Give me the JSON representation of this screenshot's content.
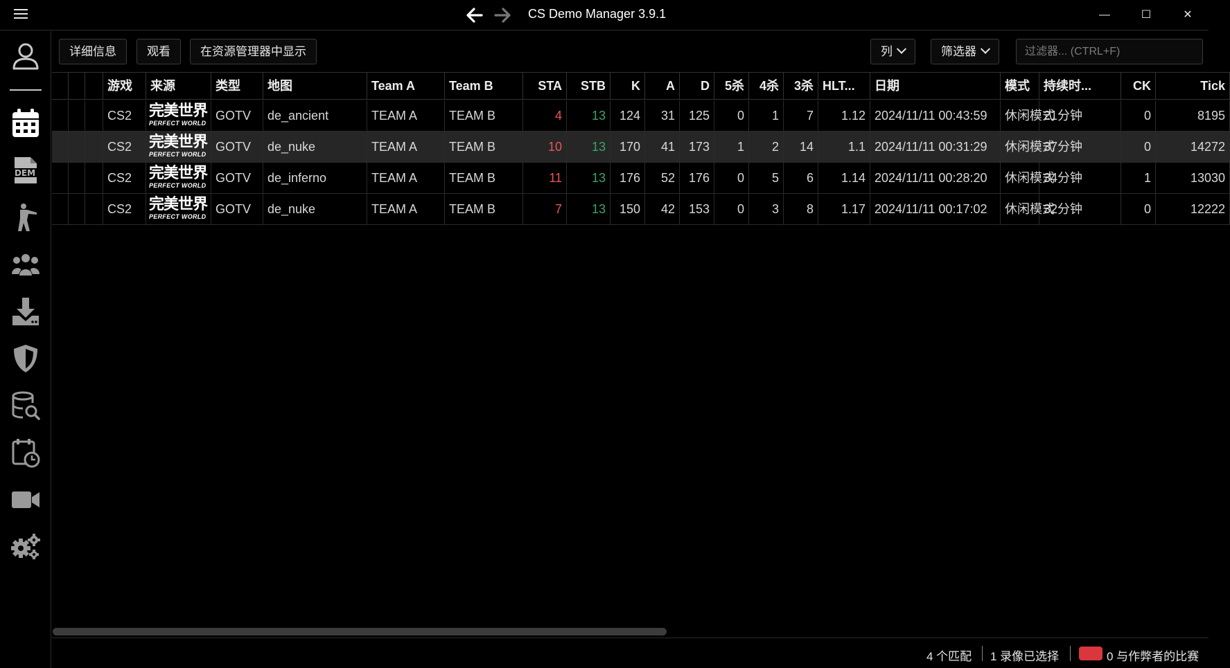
{
  "titlebar": {
    "title": "CS Demo Manager 3.9.1",
    "menu_icon": "hamburger-icon",
    "back_icon": "arrow-left-icon",
    "forward_icon": "arrow-right-icon",
    "minimize": "—",
    "maximize": "☐",
    "close": "✕"
  },
  "sidebar": {
    "items": [
      {
        "name": "profile",
        "icon": "user-icon"
      },
      {
        "name": "matches",
        "icon": "calendar-icon",
        "active": true
      },
      {
        "name": "demos",
        "icon": "dem-file-icon"
      },
      {
        "name": "players",
        "icon": "soldier-icon"
      },
      {
        "name": "teams",
        "icon": "team-icon"
      },
      {
        "name": "downloads",
        "icon": "download-icon"
      },
      {
        "name": "ban",
        "icon": "shield-icon"
      },
      {
        "name": "search",
        "icon": "database-search-icon"
      },
      {
        "name": "timeline",
        "icon": "calendar-clock-icon"
      },
      {
        "name": "videos",
        "icon": "video-camera-icon"
      },
      {
        "name": "settings",
        "icon": "gears-icon"
      }
    ]
  },
  "toolbar": {
    "details_label": "详细信息",
    "watch_label": "观看",
    "reveal_label": "在资源管理器中显示",
    "columns_label": "列",
    "filters_label": "筛选器",
    "filter_placeholder": "过滤器... (CTRL+F)"
  },
  "table": {
    "headers": {
      "game": "游戏",
      "source": "来源",
      "type": "类型",
      "map": "地图",
      "team_a": "Team A",
      "team_b": "Team B",
      "sta": "STA",
      "stb": "STB",
      "k": "K",
      "a": "A",
      "d": "D",
      "k5": "5杀",
      "k4": "4杀",
      "k3": "3杀",
      "hlt": "HLT...",
      "date": "日期",
      "mode": "模式",
      "duration": "持续时...",
      "ck": "CK",
      "tick": "Tick"
    },
    "source_logo": {
      "cn": "完美世界",
      "en": "PERFECT WORLD"
    },
    "rows": [
      {
        "game": "CS2",
        "type": "GOTV",
        "map": "de_ancient",
        "team_a": "TEAM A",
        "team_b": "TEAM B",
        "sta": "4",
        "stb": "13",
        "k": "124",
        "a": "31",
        "d": "125",
        "k5": "0",
        "k4": "1",
        "k3": "7",
        "hlt": "1.12",
        "date": "2024/11/11 00:43:59",
        "mode": "休闲模式",
        "duration": "21分钟",
        "ck": "0",
        "tick": "8195"
      },
      {
        "game": "CS2",
        "type": "GOTV",
        "map": "de_nuke",
        "team_a": "TEAM A",
        "team_b": "TEAM B",
        "sta": "10",
        "stb": "13",
        "k": "170",
        "a": "41",
        "d": "173",
        "k5": "1",
        "k4": "2",
        "k3": "14",
        "hlt": "1.1",
        "date": "2024/11/11 00:31:29",
        "mode": "休闲模式",
        "duration": "37分钟",
        "ck": "0",
        "tick": "14272"
      },
      {
        "game": "CS2",
        "type": "GOTV",
        "map": "de_inferno",
        "team_a": "TEAM A",
        "team_b": "TEAM B",
        "sta": "11",
        "stb": "13",
        "k": "176",
        "a": "52",
        "d": "176",
        "k5": "0",
        "k4": "5",
        "k3": "6",
        "hlt": "1.14",
        "date": "2024/11/11 00:28:20",
        "mode": "休闲模式",
        "duration": "34分钟",
        "ck": "1",
        "tick": "13030"
      },
      {
        "game": "CS2",
        "type": "GOTV",
        "map": "de_nuke",
        "team_a": "TEAM A",
        "team_b": "TEAM B",
        "sta": "7",
        "stb": "13",
        "k": "150",
        "a": "42",
        "d": "153",
        "k5": "0",
        "k4": "3",
        "k3": "8",
        "hlt": "1.17",
        "date": "2024/11/11 00:17:02",
        "mode": "休闲模式",
        "duration": "32分钟",
        "ck": "0",
        "tick": "12222"
      }
    ],
    "selected_row": 1
  },
  "statusbar": {
    "matches": "4 个匹配",
    "selected": "1 录像已选择",
    "cheaters": "0 与作弊者的比赛",
    "cheater_color": "#d9363e"
  },
  "colors": {
    "loss_score": "#e8555b",
    "win_score": "#3aa56b",
    "selected_row_bg": "#262626"
  }
}
